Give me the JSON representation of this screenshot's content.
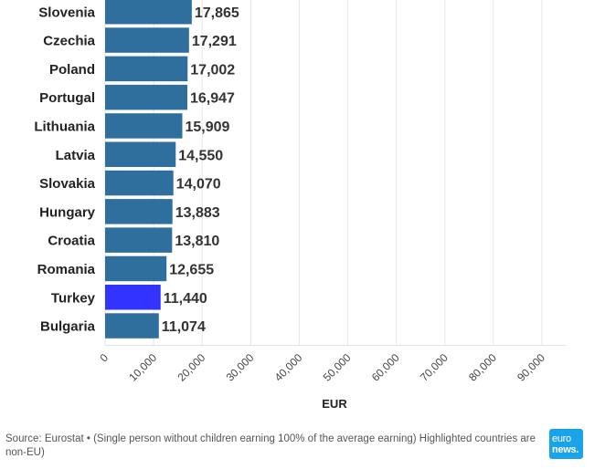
{
  "chart_data": {
    "type": "bar",
    "orientation": "horizontal",
    "categories": [
      "Slovenia",
      "Czechia",
      "Poland",
      "Portugal",
      "Lithuania",
      "Latvia",
      "Slovakia",
      "Hungary",
      "Croatia",
      "Romania",
      "Turkey",
      "Bulgaria"
    ],
    "values": [
      17865,
      17291,
      17002,
      16947,
      15909,
      14550,
      14070,
      13883,
      13810,
      12655,
      11440,
      11074
    ],
    "value_labels": [
      "17,865",
      "17,291",
      "17,002",
      "16,947",
      "15,909",
      "14,550",
      "14,070",
      "13,883",
      "13,810",
      "12,655",
      "11,440",
      "11,074"
    ],
    "highlighted": [
      "Turkey"
    ],
    "bar_color": "#2e6f9e",
    "highlight_color": "#3333ff",
    "xlabel": "EUR",
    "xlim": [
      0,
      95000
    ],
    "xticks": [
      0,
      10000,
      20000,
      30000,
      40000,
      50000,
      60000,
      70000,
      80000,
      90000
    ],
    "xtick_labels": [
      "0",
      "10,000",
      "20,000",
      "30,000",
      "40,000",
      "50,000",
      "60,000",
      "70,000",
      "80,000",
      "90,000"
    ],
    "grid": true
  },
  "footer": {
    "source": "Source: Eurostat • (Single person without children earning 100% of the average earning) Highlighted countries are non-EU)"
  },
  "logo": {
    "line1": "euro",
    "line2": "news."
  }
}
